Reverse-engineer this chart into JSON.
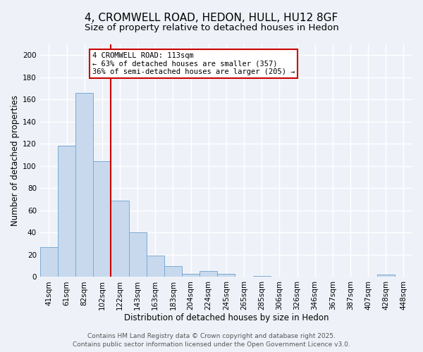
{
  "title": "4, CROMWELL ROAD, HEDON, HULL, HU12 8GF",
  "subtitle": "Size of property relative to detached houses in Hedon",
  "xlabel": "Distribution of detached houses by size in Hedon",
  "ylabel": "Number of detached properties",
  "bar_labels": [
    "41sqm",
    "61sqm",
    "82sqm",
    "102sqm",
    "122sqm",
    "143sqm",
    "163sqm",
    "183sqm",
    "204sqm",
    "224sqm",
    "245sqm",
    "265sqm",
    "285sqm",
    "306sqm",
    "326sqm",
    "346sqm",
    "367sqm",
    "387sqm",
    "407sqm",
    "428sqm",
    "448sqm"
  ],
  "bar_values": [
    27,
    118,
    166,
    104,
    69,
    40,
    19,
    10,
    3,
    5,
    3,
    0,
    1,
    0,
    0,
    0,
    0,
    0,
    0,
    2,
    0
  ],
  "bar_color": "#c8d9ee",
  "bar_edge_color": "#7aaad4",
  "vline_color": "#cc0000",
  "ylim": [
    0,
    210
  ],
  "yticks": [
    0,
    20,
    40,
    60,
    80,
    100,
    120,
    140,
    160,
    180,
    200
  ],
  "annotation_title": "4 CROMWELL ROAD: 113sqm",
  "annotation_line1": "← 63% of detached houses are smaller (357)",
  "annotation_line2": "36% of semi-detached houses are larger (205) →",
  "footer_line1": "Contains HM Land Registry data © Crown copyright and database right 2025.",
  "footer_line2": "Contains public sector information licensed under the Open Government Licence v3.0.",
  "background_color": "#eef2f8",
  "grid_color": "#ffffff",
  "title_fontsize": 11,
  "subtitle_fontsize": 9.5,
  "axis_label_fontsize": 8.5,
  "tick_fontsize": 7.5,
  "annotation_fontsize": 7.5,
  "footer_fontsize": 6.5
}
